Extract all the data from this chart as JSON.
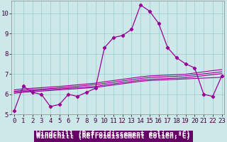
{
  "x": [
    0,
    1,
    2,
    3,
    4,
    5,
    6,
    7,
    8,
    9,
    10,
    11,
    12,
    13,
    14,
    15,
    16,
    17,
    18,
    19,
    20,
    21,
    22,
    23
  ],
  "main_y": [
    5.2,
    6.4,
    6.1,
    6.0,
    5.4,
    5.5,
    6.0,
    5.9,
    6.1,
    6.3,
    8.3,
    8.8,
    8.9,
    9.2,
    10.4,
    10.1,
    9.5,
    8.3,
    7.8,
    7.5,
    7.3,
    6.0,
    5.9,
    6.9
  ],
  "ref_lines": [
    [
      6.05,
      6.1,
      6.13,
      6.16,
      6.19,
      6.22,
      6.25,
      6.28,
      6.31,
      6.34,
      6.4,
      6.46,
      6.52,
      6.58,
      6.64,
      6.68,
      6.7,
      6.72,
      6.74,
      6.76,
      6.78,
      6.8,
      6.82,
      6.84
    ],
    [
      6.1,
      6.15,
      6.18,
      6.21,
      6.24,
      6.27,
      6.3,
      6.33,
      6.36,
      6.39,
      6.46,
      6.52,
      6.58,
      6.64,
      6.7,
      6.74,
      6.76,
      6.78,
      6.8,
      6.82,
      6.87,
      6.92,
      6.97,
      7.02
    ],
    [
      6.15,
      6.2,
      6.23,
      6.26,
      6.29,
      6.32,
      6.36,
      6.4,
      6.44,
      6.48,
      6.54,
      6.6,
      6.66,
      6.72,
      6.78,
      6.83,
      6.85,
      6.87,
      6.89,
      6.91,
      6.96,
      7.01,
      7.06,
      7.11
    ],
    [
      6.22,
      6.27,
      6.3,
      6.33,
      6.36,
      6.39,
      6.43,
      6.47,
      6.51,
      6.55,
      6.62,
      6.68,
      6.74,
      6.8,
      6.86,
      6.91,
      6.93,
      6.95,
      6.97,
      6.99,
      7.05,
      7.11,
      7.17,
      7.22
    ]
  ],
  "line_color": "#990099",
  "bg_color": "#cce8e8",
  "plot_bg": "#cce8e8",
  "grid_color": "#99cccc",
  "xlabel": "Windchill (Refroidissement éolien,°C)",
  "xlabel_bg": "#660066",
  "xlabel_fg": "#ffffff",
  "ylim": [
    5.0,
    10.6
  ],
  "yticks": [
    5,
    6,
    7,
    8,
    9,
    10
  ],
  "xticks": [
    0,
    1,
    2,
    3,
    4,
    5,
    6,
    7,
    8,
    9,
    10,
    11,
    12,
    13,
    14,
    15,
    16,
    17,
    18,
    19,
    20,
    21,
    22,
    23
  ],
  "tick_fontsize": 6.5,
  "xlabel_fontsize": 7
}
